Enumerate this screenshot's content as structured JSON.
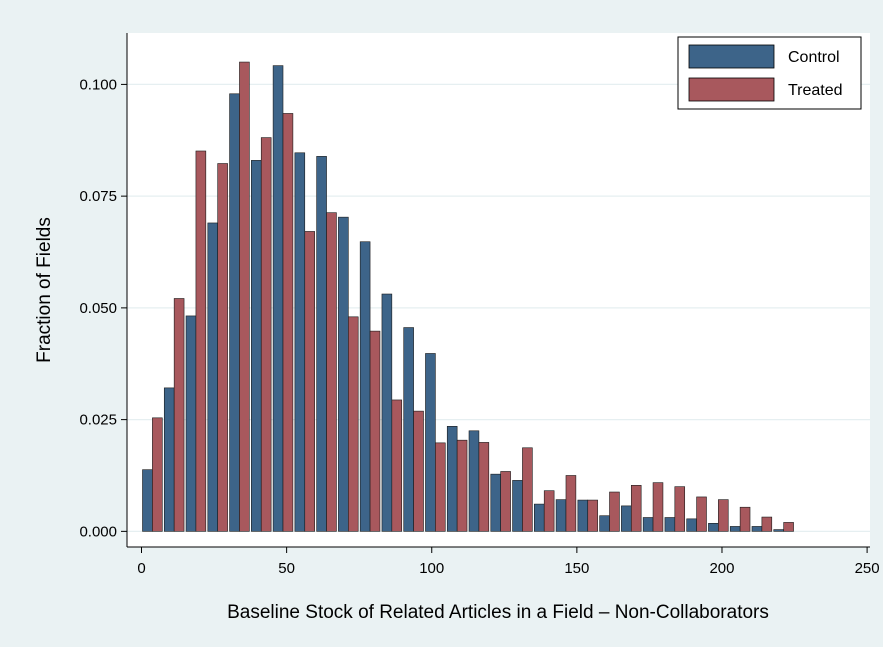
{
  "chart_data": {
    "type": "bar",
    "title": "",
    "xlabel": "Baseline Stock of Related Articles in a Field – Non-Collaborators",
    "ylabel": "Fraction of Fields",
    "xlim": [
      -5,
      251
    ],
    "ylim": [
      -0.0035,
      0.1115
    ],
    "xticks": [
      0,
      50,
      100,
      150,
      200,
      250
    ],
    "xtick_labels": [
      "0",
      "50",
      "100",
      "150",
      "200",
      "250"
    ],
    "yticks": [
      0,
      0.025,
      0.05,
      0.075,
      0.1
    ],
    "ytick_labels": [
      "0.000",
      "0.025",
      "0.050",
      "0.075",
      "0.100"
    ],
    "grid": true,
    "legend_position": "top-right",
    "bin_width": 7.5,
    "x": [
      3.75,
      11.25,
      18.75,
      26.25,
      33.75,
      41.25,
      48.75,
      56.25,
      63.75,
      71.25,
      78.75,
      86.25,
      93.75,
      101.25,
      108.75,
      116.25,
      123.75,
      131.25,
      138.75,
      146.25,
      153.75,
      161.25,
      168.75,
      176.25,
      183.75,
      191.25,
      198.75,
      206.25,
      213.75,
      221.25
    ],
    "series": [
      {
        "name": "Control",
        "color": "#3d6489",
        "values": [
          0.0138,
          0.0321,
          0.0482,
          0.069,
          0.0979,
          0.083,
          0.1042,
          0.0847,
          0.0839,
          0.0703,
          0.0648,
          0.0531,
          0.0456,
          0.0398,
          0.0235,
          0.0225,
          0.0128,
          0.0114,
          0.0061,
          0.0071,
          0.007,
          0.0035,
          0.0057,
          0.0031,
          0.0031,
          0.0028,
          0.0018,
          0.0011,
          0.0011,
          0.0004
        ]
      },
      {
        "name": "Treated",
        "color": "#a8585d",
        "values": [
          0.0254,
          0.0521,
          0.0851,
          0.0823,
          0.105,
          0.0881,
          0.0935,
          0.0671,
          0.0713,
          0.048,
          0.0448,
          0.0294,
          0.0269,
          0.0198,
          0.0204,
          0.0199,
          0.0134,
          0.0187,
          0.0091,
          0.0125,
          0.007,
          0.0088,
          0.0103,
          0.0109,
          0.01,
          0.0077,
          0.0071,
          0.0054,
          0.0032,
          0.002
        ]
      }
    ]
  }
}
